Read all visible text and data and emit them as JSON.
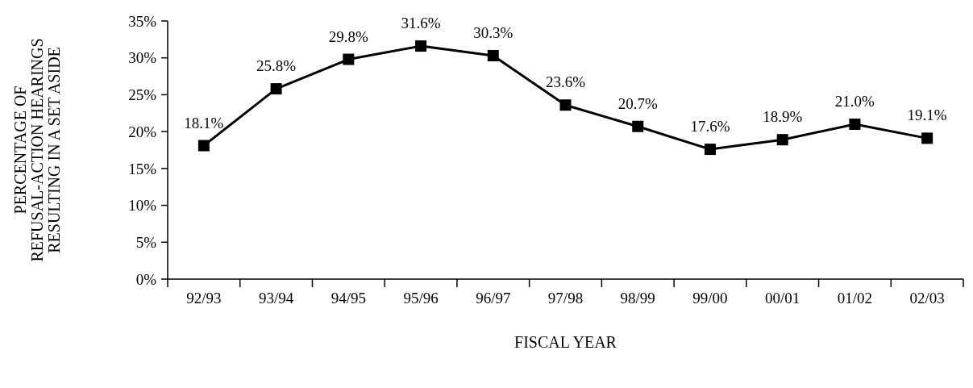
{
  "chart_data": {
    "type": "line",
    "xlabel": "FISCAL YEAR",
    "ylabel": "PERCENTAGE OF\nREFUSAL-ACTION HEARINGS\nRESULTING IN A SET ASIDE",
    "categories": [
      "92/93",
      "93/94",
      "94/95",
      "95/96",
      "96/97",
      "97/98",
      "98/99",
      "99/00",
      "00/01",
      "01/02",
      "02/03"
    ],
    "series": [
      {
        "color": "#000000",
        "values": [
          18.1,
          25.8,
          29.8,
          31.6,
          30.3,
          23.6,
          20.7,
          17.6,
          18.9,
          21.0,
          19.1
        ],
        "value_labels": [
          "18.1%",
          "25.8%",
          "29.8%",
          "31.6%",
          "30.3%",
          "23.6%",
          "20.7%",
          "17.6%",
          "18.9%",
          "21.0%",
          "19.1%"
        ]
      }
    ],
    "ylim": [
      0,
      35
    ],
    "yticks": [
      {
        "value": 0,
        "label": "0%"
      },
      {
        "value": 5,
        "label": "5%"
      },
      {
        "value": 10,
        "label": "10%"
      },
      {
        "value": 15,
        "label": "15%"
      },
      {
        "value": 20,
        "label": "20%"
      },
      {
        "value": 25,
        "label": "25%"
      },
      {
        "value": 30,
        "label": "30%"
      },
      {
        "value": 35,
        "label": "35%"
      }
    ],
    "marker": "square",
    "line_style": "solid",
    "grid": false
  }
}
